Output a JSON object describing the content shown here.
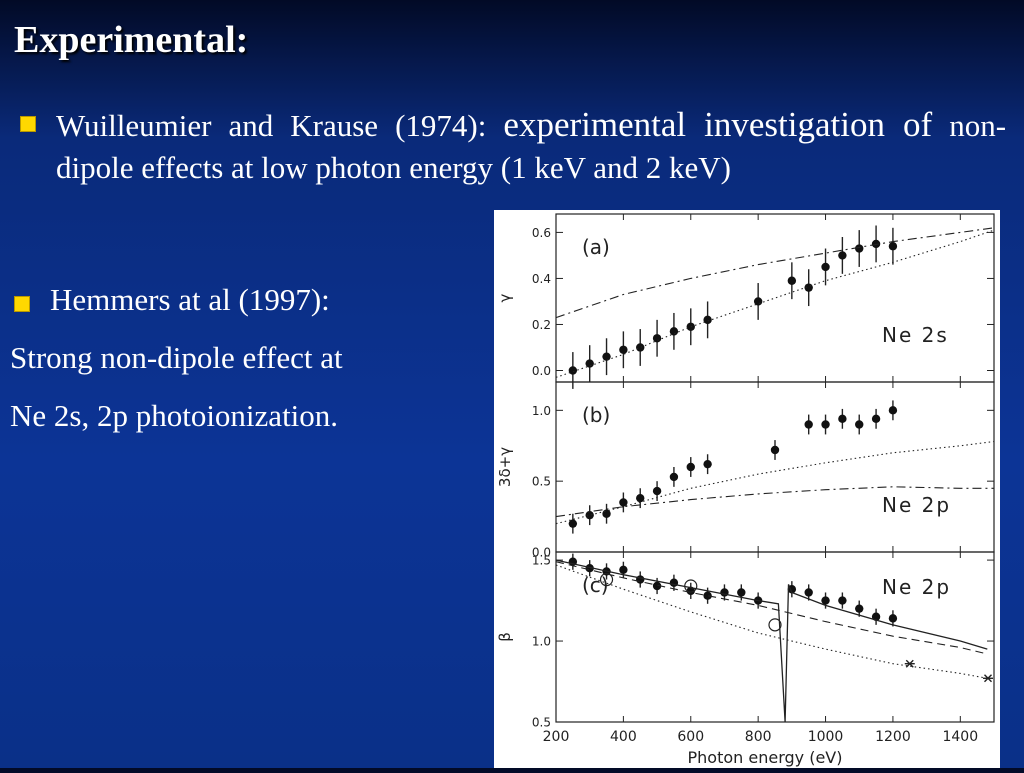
{
  "slide": {
    "title": "Experimental:",
    "bullet1": {
      "part1": "Wuilleumier and Krause (1974):",
      "part2": "experimental investigation of",
      "part3": "non-dipole effects at low photon energy (1 keV and 2 keV)"
    },
    "bullet2": "Hemmers at al (1997):",
    "line1": "Strong non-dipole effect at",
    "line2": "Ne 2s, 2p photoionization."
  },
  "colors": {
    "bullet": "#ffd800",
    "background": "#0c3496",
    "text": "#ffffff"
  },
  "chart_data": [
    {
      "type": "scatter",
      "panel_label": "(a)",
      "annotation": "Ne 2s",
      "ylabel": "γ",
      "xlim": [
        200,
        1500
      ],
      "ylim": [
        -0.05,
        0.68
      ],
      "yticks": [
        "0.0",
        "0.2",
        "0.4",
        "0.6"
      ],
      "series": [
        {
          "kind": "points",
          "x": [
            250,
            300,
            350,
            400,
            450,
            500,
            550,
            600,
            650,
            800,
            900,
            950,
            1000,
            1050,
            1100,
            1150,
            1200
          ],
          "y": [
            0.0,
            0.03,
            0.06,
            0.09,
            0.1,
            0.14,
            0.17,
            0.19,
            0.22,
            0.3,
            0.39,
            0.36,
            0.45,
            0.5,
            0.53,
            0.55,
            0.54
          ],
          "err": 0.08
        },
        {
          "kind": "dashdot",
          "x": [
            200,
            400,
            600,
            800,
            1000,
            1200,
            1400,
            1500
          ],
          "y": [
            0.23,
            0.33,
            0.4,
            0.46,
            0.51,
            0.56,
            0.6,
            0.62
          ]
        },
        {
          "kind": "dotted",
          "x": [
            200,
            400,
            600,
            800,
            1000,
            1200,
            1400,
            1500
          ],
          "y": [
            -0.03,
            0.07,
            0.19,
            0.29,
            0.39,
            0.47,
            0.56,
            0.61
          ]
        }
      ]
    },
    {
      "type": "scatter",
      "panel_label": "(b)",
      "annotation": "Ne 2p",
      "ylabel": "3δ+γ",
      "xlim": [
        200,
        1500
      ],
      "ylim": [
        0.0,
        1.2
      ],
      "yticks": [
        "0.0",
        "0.5",
        "1.0"
      ],
      "series": [
        {
          "kind": "points",
          "x": [
            250,
            300,
            350,
            400,
            450,
            500,
            550,
            600,
            650,
            850,
            950,
            1000,
            1050,
            1100,
            1150,
            1200
          ],
          "y": [
            0.2,
            0.26,
            0.27,
            0.35,
            0.38,
            0.43,
            0.53,
            0.6,
            0.62,
            0.72,
            0.9,
            0.9,
            0.94,
            0.9,
            0.94,
            1.0
          ],
          "err": 0.07
        },
        {
          "kind": "dotted",
          "x": [
            200,
            400,
            600,
            800,
            1000,
            1200,
            1400,
            1500
          ],
          "y": [
            0.2,
            0.32,
            0.45,
            0.55,
            0.63,
            0.7,
            0.75,
            0.78
          ]
        },
        {
          "kind": "dashdot",
          "x": [
            200,
            400,
            600,
            800,
            1000,
            1200,
            1400,
            1500
          ],
          "y": [
            0.25,
            0.32,
            0.37,
            0.41,
            0.44,
            0.46,
            0.45,
            0.45
          ]
        }
      ]
    },
    {
      "type": "scatter",
      "panel_label": "(c)",
      "annotation": "Ne 2p",
      "ylabel": "β",
      "xlabel": "Photon energy (eV)",
      "xlim": [
        200,
        1500
      ],
      "ylim": [
        0.5,
        1.55
      ],
      "yticks": [
        "0.5",
        "1.0",
        "1.5"
      ],
      "xticks": [
        "200",
        "400",
        "600",
        "800",
        "1000",
        "1200",
        "1400"
      ],
      "series": [
        {
          "kind": "points",
          "x": [
            250,
            300,
            350,
            400,
            450,
            500,
            550,
            600,
            650,
            700,
            750,
            800,
            900,
            950,
            1000,
            1050,
            1100,
            1150,
            1200
          ],
          "y": [
            1.49,
            1.45,
            1.43,
            1.44,
            1.38,
            1.34,
            1.36,
            1.31,
            1.28,
            1.3,
            1.3,
            1.25,
            1.32,
            1.3,
            1.25,
            1.25,
            1.2,
            1.15,
            1.14
          ],
          "err": 0.05
        },
        {
          "kind": "open",
          "x": [
            350,
            600,
            850
          ],
          "y": [
            1.38,
            1.34,
            1.1
          ]
        },
        {
          "kind": "star",
          "x": [
            1250,
            1500
          ],
          "y": [
            0.86,
            0.77
          ]
        },
        {
          "kind": "solid",
          "x": [
            200,
            400,
            600,
            800,
            860,
            880,
            890,
            900,
            1000,
            1200,
            1400,
            1480
          ],
          "y": [
            1.5,
            1.41,
            1.33,
            1.25,
            1.23,
            0.5,
            1.35,
            1.3,
            1.22,
            1.1,
            1.0,
            0.95
          ]
        },
        {
          "kind": "dashed",
          "x": [
            200,
            400,
            600,
            800,
            1000,
            1200,
            1400,
            1480
          ],
          "y": [
            1.49,
            1.39,
            1.3,
            1.22,
            1.12,
            1.03,
            0.96,
            0.92
          ]
        },
        {
          "kind": "dotted",
          "x": [
            200,
            400,
            600,
            800,
            1000,
            1200,
            1400,
            1480
          ],
          "y": [
            1.47,
            1.32,
            1.18,
            1.05,
            0.95,
            0.86,
            0.8,
            0.77
          ]
        }
      ]
    }
  ]
}
